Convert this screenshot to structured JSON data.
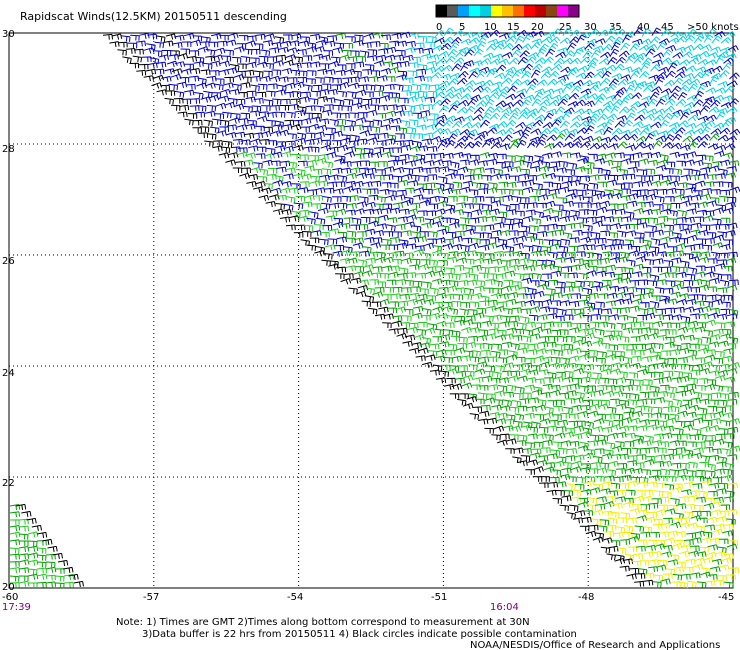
{
  "header": {
    "title": "Rapidscat Winds(12.5KM) 20150511 descending"
  },
  "legend": {
    "labels": [
      "0",
      "5",
      "10",
      "15",
      "20",
      "25",
      "30",
      "35",
      "40",
      "45",
      ">50 knots"
    ],
    "colors": [
      "#000000",
      "#5a5a5a",
      "#00a0ff",
      "#00ffff",
      "#00d0e0",
      "#ffff00",
      "#ffc000",
      "#ff7000",
      "#ff0000",
      "#c00000",
      "#8b4513",
      "#ff00ff",
      "#8b008b"
    ]
  },
  "axes": {
    "x_ticks": [
      "-60",
      "-57",
      "-54",
      "-51",
      "-48",
      "-45"
    ],
    "y_ticks": [
      "30",
      "28",
      "26",
      "24",
      "22",
      "20"
    ],
    "lon_range": [
      -60,
      -45
    ],
    "lat_range": [
      20,
      30
    ]
  },
  "times": {
    "left": "17:39",
    "middle": "16:04"
  },
  "notes": {
    "line1": "Note: 1) Times are GMT 2)Times along bottom correspond to measurement at 30N",
    "line2": "3)Data buffer is 22 hrs from 20150511 4) Black circles indicate possible contamination",
    "credit": "NOAA/NESDIS/Office of Research and Applications"
  },
  "wind_colors": {
    "black": "#000000",
    "green": "#00a000",
    "lightgreen": "#22cc22",
    "blue": "#0000cc",
    "cyan": "#00d0e0",
    "yellow": "#f0f000"
  }
}
